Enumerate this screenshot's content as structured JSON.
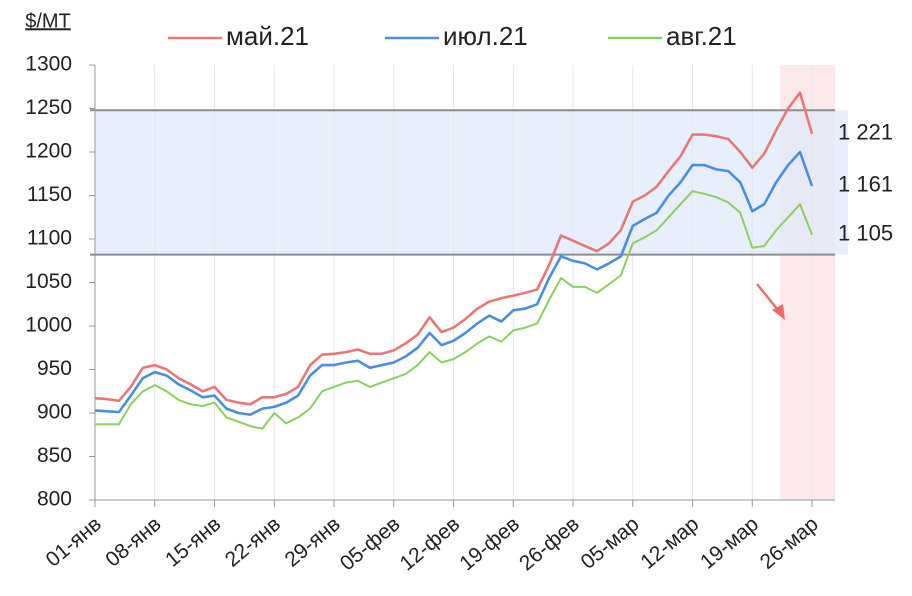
{
  "chart_data": {
    "type": "line",
    "y_unit_label": "$/MT",
    "categories": [
      "01-янв",
      null,
      null,
      null,
      null,
      "08-янв",
      null,
      null,
      null,
      null,
      "15-янв",
      null,
      null,
      null,
      null,
      "22-янв",
      null,
      null,
      null,
      null,
      "29-янв",
      null,
      null,
      null,
      null,
      "05-фев",
      null,
      null,
      null,
      null,
      "12-фев",
      null,
      null,
      null,
      null,
      "19-фев",
      null,
      null,
      null,
      null,
      "26-фев",
      null,
      null,
      null,
      null,
      "05-мар",
      null,
      null,
      null,
      null,
      "12-мар",
      null,
      null,
      null,
      null,
      "19-мар",
      null,
      null,
      null,
      null,
      "26-мар"
    ],
    "series": [
      {
        "name": "май.21",
        "color": "#e87878",
        "last_label": "1 221",
        "values": [
          917,
          916,
          914,
          930,
          952,
          955,
          950,
          940,
          933,
          925,
          930,
          915,
          912,
          910,
          918,
          918,
          922,
          930,
          955,
          967,
          968,
          970,
          973,
          968,
          968,
          972,
          980,
          990,
          1010,
          993,
          998,
          1008,
          1020,
          1028,
          1032,
          1035,
          1038,
          1042,
          1070,
          1104,
          1098,
          1092,
          1086,
          1095,
          1110,
          1143,
          1150,
          1160,
          1178,
          1195,
          1220,
          1220,
          1218,
          1215,
          1200,
          1182,
          1198,
          1225,
          1250,
          1268,
          1221
        ]
      },
      {
        "name": "июл.21",
        "color": "#4a8ee0",
        "last_label": "1 161",
        "values": [
          903,
          902,
          901,
          920,
          940,
          947,
          943,
          933,
          926,
          918,
          920,
          905,
          900,
          898,
          905,
          907,
          912,
          920,
          943,
          955,
          955,
          958,
          960,
          952,
          955,
          958,
          965,
          975,
          992,
          978,
          983,
          992,
          1003,
          1012,
          1005,
          1018,
          1020,
          1025,
          1055,
          1080,
          1075,
          1072,
          1065,
          1072,
          1080,
          1115,
          1123,
          1130,
          1150,
          1165,
          1185,
          1185,
          1180,
          1178,
          1165,
          1132,
          1140,
          1165,
          1185,
          1200,
          1161
        ]
      },
      {
        "name": "авг.21",
        "color": "#8ccf60",
        "last_label": "1 105",
        "values": [
          887,
          887,
          887,
          910,
          925,
          932,
          925,
          915,
          910,
          908,
          912,
          895,
          890,
          885,
          882,
          900,
          888,
          895,
          905,
          925,
          930,
          935,
          937,
          930,
          935,
          940,
          945,
          955,
          970,
          958,
          962,
          970,
          980,
          988,
          982,
          995,
          998,
          1003,
          1030,
          1055,
          1045,
          1045,
          1038,
          1048,
          1058,
          1095,
          1102,
          1110,
          1125,
          1140,
          1155,
          1152,
          1148,
          1142,
          1130,
          1090,
          1092,
          1110,
          1125,
          1140,
          1105
        ]
      }
    ],
    "ylim": [
      800,
      1300
    ],
    "yticks": [
      800,
      850,
      900,
      950,
      1000,
      1050,
      1100,
      1150,
      1200,
      1250,
      1300
    ],
    "reference_lines": [
      1248,
      1082
    ],
    "grid": "x"
  }
}
